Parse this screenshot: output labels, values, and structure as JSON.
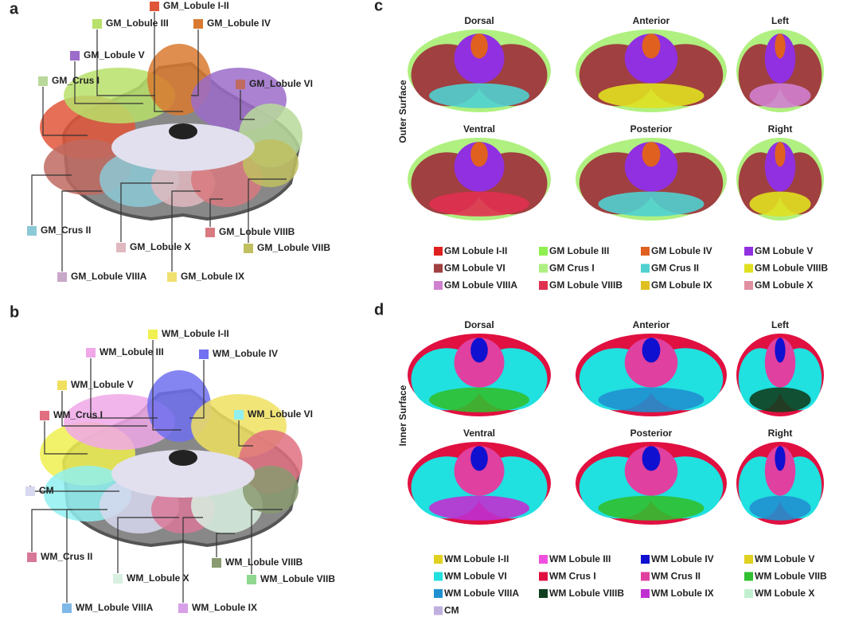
{
  "panels": {
    "a": {
      "letter": "a",
      "labels": [
        {
          "text": "GM_Lobule I-II",
          "color": "#e0563a"
        },
        {
          "text": "GM_Lobule III",
          "color": "#b8e06a"
        },
        {
          "text": "GM_Lobule IV",
          "color": "#d97a30"
        },
        {
          "text": "GM_Lobule V",
          "color": "#9b6cc9"
        },
        {
          "text": "GM_Crus I",
          "color": "#b9d99a"
        },
        {
          "text": "GM_Lobule VI",
          "color": "#c06a60"
        },
        {
          "text": "GM_Crus II",
          "color": "#8cc9d6"
        },
        {
          "text": "GM_Lobule X",
          "color": "#e0b8c0"
        },
        {
          "text": "GM_Lobule VIIIB",
          "color": "#d87a80"
        },
        {
          "text": "GM_Lobule VIIB",
          "color": "#c0c060"
        },
        {
          "text": "GM_Lobule VIIIA",
          "color": "#c8a8c8"
        },
        {
          "text": "GM_Lobule IX",
          "color": "#f0e070"
        }
      ]
    },
    "b": {
      "letter": "b",
      "labels": [
        {
          "text": "WM_Lobule I-II",
          "color": "#f0f050"
        },
        {
          "text": "WM_Lobule III",
          "color": "#f0a8e8"
        },
        {
          "text": "WM_Lobule IV",
          "color": "#7070f0"
        },
        {
          "text": "WM_Lobule V",
          "color": "#f0e060"
        },
        {
          "text": "WM_Crus I",
          "color": "#e07080"
        },
        {
          "text": "WM_Lobule VI",
          "color": "#90f0f0"
        },
        {
          "text": "CM",
          "color": "#d8d8f0"
        },
        {
          "text": "WM_Crus II",
          "color": "#d87898"
        },
        {
          "text": "WM_Lobule X",
          "color": "#d8f0e0"
        },
        {
          "text": "WM_Lobule VIIIB",
          "color": "#8a9a70"
        },
        {
          "text": "WM_Lobule VIIB",
          "color": "#90d890"
        },
        {
          "text": "WM_Lobule VIIIA",
          "color": "#80b8e8"
        },
        {
          "text": "WM_Lobule IX",
          "color": "#d8a0e8"
        }
      ]
    },
    "c": {
      "letter": "c",
      "side": "Outer Surface",
      "views": [
        "Dorsal",
        "Anterior",
        "Left",
        "Ventral",
        "Posterior",
        "Right"
      ],
      "legend": [
        {
          "text": "GM Lobule I-II",
          "color": "#e02020"
        },
        {
          "text": "GM Lobule III",
          "color": "#90f050"
        },
        {
          "text": "GM Lobule IV",
          "color": "#e06020"
        },
        {
          "text": "GM Lobule V",
          "color": "#9030e0"
        },
        {
          "text": "GM Lobule VI",
          "color": "#a04040"
        },
        {
          "text": "GM Crus I",
          "color": "#b0f080"
        },
        {
          "text": "GM Crus II",
          "color": "#50d0d0"
        },
        {
          "text": "GM Lobule VIIIB",
          "color": "#e0e020"
        },
        {
          "text": "GM Lobule VIIIA",
          "color": "#d080d0"
        },
        {
          "text": "GM Lobule VIIIB",
          "color": "#e03050"
        },
        {
          "text": "GM Lobule IX",
          "color": "#e0c020"
        },
        {
          "text": "GM Lobule X",
          "color": "#e090a0"
        }
      ]
    },
    "d": {
      "letter": "d",
      "side": "Inner Surface",
      "views": [
        "Dorsal",
        "Anterior",
        "Left",
        "Ventral",
        "Posterior",
        "Right"
      ],
      "legend": [
        {
          "text": "WM Lobule I-II",
          "color": "#e0d020"
        },
        {
          "text": "WM Lobule III",
          "color": "#f050e0"
        },
        {
          "text": "WM Lobule IV",
          "color": "#1010d0"
        },
        {
          "text": "WM Lobule V",
          "color": "#e0d020"
        },
        {
          "text": "WM Lobule VI",
          "color": "#20e0e0"
        },
        {
          "text": "WM Crus I",
          "color": "#e01040"
        },
        {
          "text": "WM Crus II",
          "color": "#e040a0"
        },
        {
          "text": "WM Lobule VIIB",
          "color": "#30c030"
        },
        {
          "text": "WM Lobule VIIIA",
          "color": "#2090d0"
        },
        {
          "text": "WM Lobule VIIIB",
          "color": "#104020"
        },
        {
          "text": "WM Lobule IX",
          "color": "#c030d0"
        },
        {
          "text": "WM Lobule X",
          "color": "#c0f0d0"
        },
        {
          "text": "CM",
          "color": "#c0b0e0"
        }
      ]
    }
  }
}
